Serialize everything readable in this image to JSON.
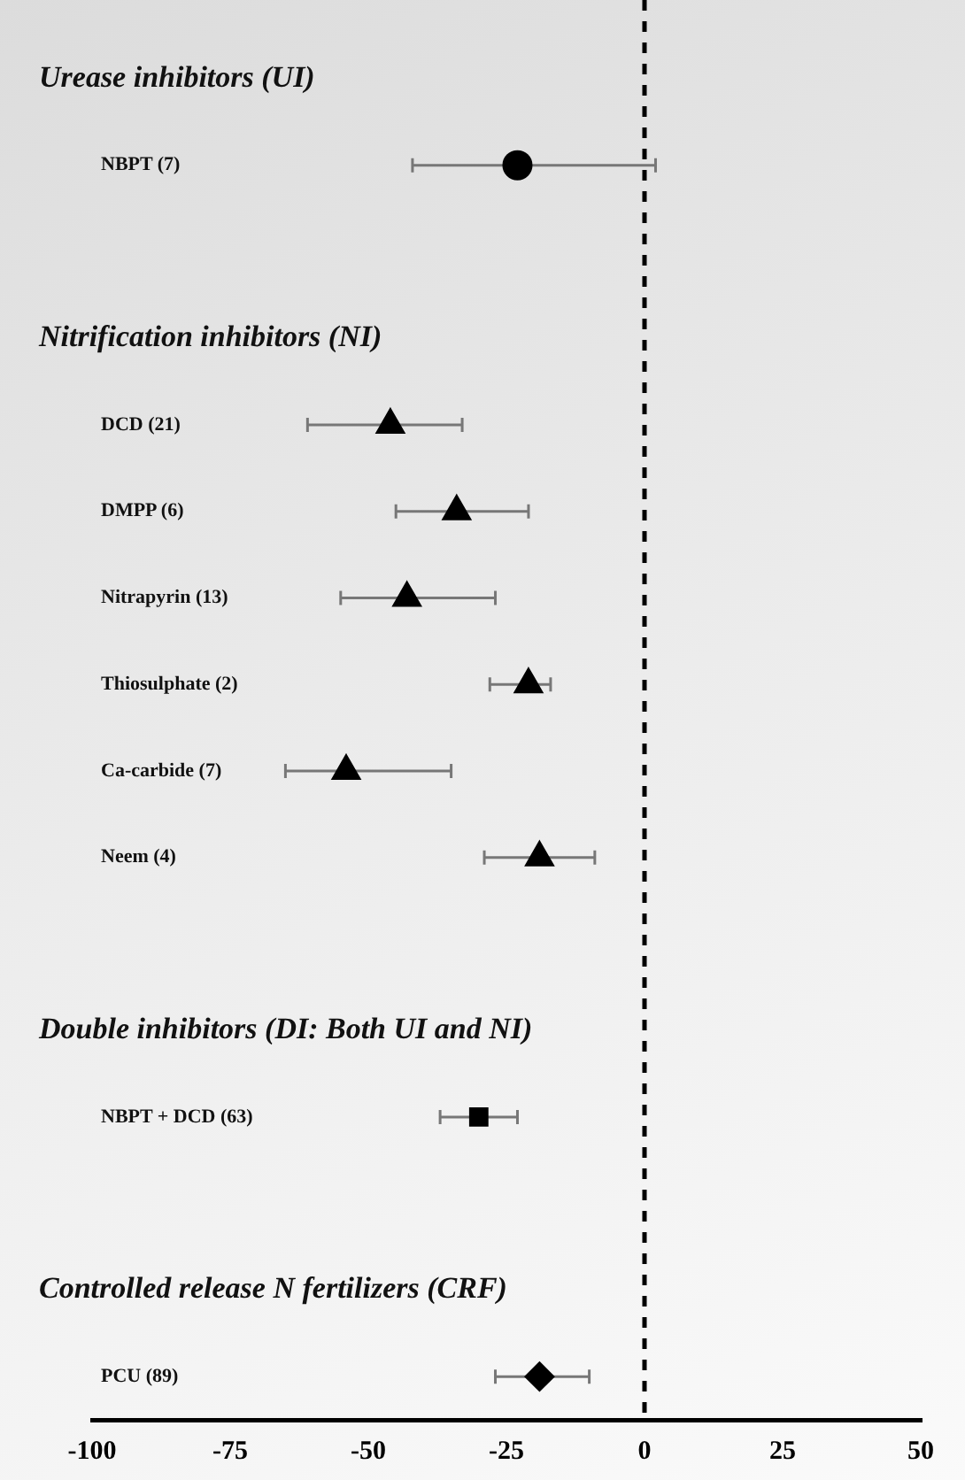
{
  "chart_data": {
    "type": "scatter",
    "categories": [
      "Urease inhibitors (UI)",
      "NBPT (7)",
      null,
      "Nitrification inhibitors (NI)",
      "DCD (21)",
      "DMPP (6)",
      "Nitrapyrin (13)",
      "Thiosulphate (2)",
      "Ca-carbide (7)",
      "Neem (4)",
      null,
      "Double inhibitors (DI: Both UI and NI)",
      "NBPT + DCD (63)",
      null,
      "Controlled release N fertilizers (CRF)",
      "PCU (89)"
    ],
    "series": [
      {
        "color": "#000000",
        "marker": "circle",
        "values": [
          null,
          -23,
          null,
          null,
          null,
          null,
          null,
          null,
          null,
          null,
          null,
          null,
          null,
          null,
          null,
          null
        ],
        "errors": [
          null,
          [
            -42,
            2
          ],
          null,
          null,
          null,
          null,
          null,
          null,
          null,
          null,
          null,
          null,
          null,
          null,
          null,
          null
        ]
      },
      {
        "color": "#000000",
        "marker": "triangle",
        "values": [
          null,
          null,
          null,
          null,
          -46,
          -34,
          -43,
          -21,
          -54,
          -19,
          null,
          null,
          null,
          null,
          null,
          null
        ],
        "errors": [
          null,
          null,
          null,
          null,
          [
            -61,
            -33
          ],
          [
            -45,
            -21
          ],
          [
            -55,
            -27
          ],
          [
            -28,
            -17
          ],
          [
            -65,
            -35
          ],
          [
            -29,
            -9
          ],
          null,
          null,
          null,
          null,
          null,
          null
        ]
      },
      {
        "color": "#000000",
        "marker": "square",
        "values": [
          null,
          null,
          null,
          null,
          null,
          null,
          null,
          null,
          null,
          null,
          null,
          null,
          -30,
          null,
          null,
          null
        ],
        "errors": [
          null,
          null,
          null,
          null,
          null,
          null,
          null,
          null,
          null,
          null,
          null,
          null,
          [
            -37,
            -23
          ],
          null,
          null,
          null
        ]
      },
      {
        "color": "#000000",
        "marker": "diamond",
        "values": [
          null,
          null,
          null,
          null,
          null,
          null,
          null,
          null,
          null,
          null,
          null,
          null,
          null,
          null,
          null,
          -19
        ],
        "errors": [
          null,
          null,
          null,
          null,
          null,
          null,
          null,
          null,
          null,
          null,
          null,
          null,
          null,
          null,
          null,
          [
            -27,
            -10
          ]
        ]
      }
    ],
    "orientation": "horizontal",
    "xlim": [
      -100,
      50
    ],
    "xticks": [
      -100,
      -75,
      -50,
      -25,
      0,
      25,
      50
    ],
    "ref_lines": [
      {
        "axis": "x",
        "value": 0,
        "color": "#000000",
        "line_style": "dashed"
      }
    ],
    "grid": false,
    "legend": false
  }
}
